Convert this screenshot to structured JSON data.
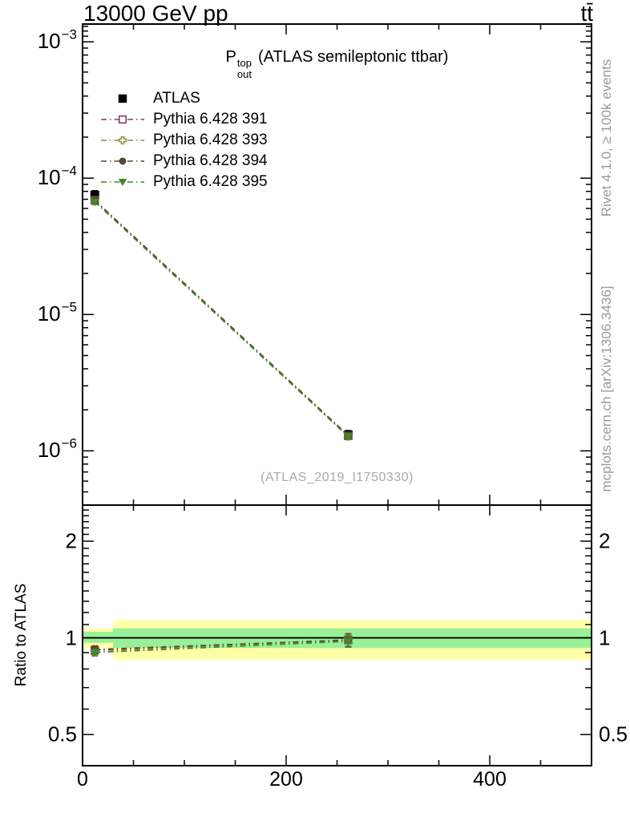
{
  "header": {
    "beam": "13000 GeV pp",
    "process": "tt̄"
  },
  "main_plot": {
    "title": {
      "symbol": "P",
      "sup": "top",
      "sub": "out",
      "rest": "(ATLAS semileptonic ttbar)"
    },
    "watermark": "(ATLAS_2019_I1750330)",
    "y_tick_labels": [
      {
        "base": "10",
        "exp": "−3",
        "value": 0.001
      },
      {
        "base": "10",
        "exp": "−4",
        "value": 0.0001
      },
      {
        "base": "10",
        "exp": "−5",
        "value": 1e-05
      },
      {
        "base": "10",
        "exp": "−6",
        "value": 1e-06
      }
    ],
    "x_tick_labels": [
      {
        "label": "0",
        "value": 0
      },
      {
        "label": "200",
        "value": 200
      },
      {
        "label": "400",
        "value": 400
      }
    ]
  },
  "ratio_plot": {
    "ylabel": "Ratio to ATLAS",
    "y_tick_labels": [
      {
        "label": "2",
        "value": 2
      },
      {
        "label": "1",
        "value": 1
      },
      {
        "label": "0.5",
        "value": 0.5
      }
    ]
  },
  "side_notes": {
    "top": "Rivet 4.1.0, ≥ 100k events",
    "bottom": "mcplots.cern.ch [arXiv:1306.3436]"
  },
  "colors": {
    "frame": "#000000",
    "atlas": "#000000",
    "pythia_391": "#7b4360",
    "pythia_393": "#8f8f3d",
    "pythia_394": "#5c4633",
    "pythia_395": "#418a28",
    "band_yellow": "#ffffa6",
    "band_green": "#98f098",
    "gray_text": "#999999",
    "watermark_text": "#aaaaaa"
  },
  "chart_data": [
    {
      "type": "scatter",
      "title": "P_out^top (ATLAS semileptonic ttbar)",
      "xlabel": "",
      "ylabel": "",
      "xlim": [
        0,
        500
      ],
      "ylog": true,
      "ylim": [
        4e-07,
        0.00135
      ],
      "x_major_ticks": [
        0,
        200,
        400
      ],
      "x_minor_step": 50,
      "y_major_ticks": [
        1e-06,
        1e-05,
        0.0001,
        0.001
      ],
      "grid": false,
      "legend_position": "top-left-inside",
      "series": [
        {
          "name": "ATLAS",
          "marker": "square-filled",
          "color": "#000000",
          "line": "none",
          "x": [
            12,
            261
          ],
          "y": [
            7.5e-05,
            1.31e-06
          ],
          "yerr": [
            6e-06,
            1e-07
          ]
        },
        {
          "name": "Pythia 6.428 391",
          "marker": "square-open",
          "color": "#7b4360",
          "line": "dash-dot",
          "x": [
            12,
            261
          ],
          "y": [
            6.9e-05,
            1.29e-06
          ],
          "yerr": [
            3e-06,
            6e-08
          ]
        },
        {
          "name": "Pythia 6.428 393",
          "marker": "cross-open",
          "color": "#8f8f3d",
          "line": "dash-dot",
          "x": [
            12,
            261
          ],
          "y": [
            6.8e-05,
            1.28e-06
          ],
          "yerr": [
            3e-06,
            6e-08
          ]
        },
        {
          "name": "Pythia 6.428 394",
          "marker": "circle-filled",
          "color": "#5c4633",
          "line": "dash-dot",
          "x": [
            12,
            261
          ],
          "y": [
            6.9e-05,
            1.3e-06
          ],
          "yerr": [
            3e-06,
            6e-08
          ]
        },
        {
          "name": "Pythia 6.428 395",
          "marker": "triangle-down-filled",
          "color": "#418a28",
          "line": "dash-dot",
          "x": [
            12,
            261
          ],
          "y": [
            6.7e-05,
            1.27e-06
          ],
          "yerr": [
            3e-06,
            6e-08
          ]
        }
      ]
    },
    {
      "type": "ratio",
      "ylabel": "Ratio to ATLAS",
      "xlim": [
        0,
        500
      ],
      "ylog": true,
      "ylim": [
        0.4,
        2.59
      ],
      "y_major_ticks": [
        0.5,
        1,
        2
      ],
      "reference_line": 1,
      "bands": [
        {
          "x0": 0,
          "x1": 30,
          "yellow": [
            0.93,
            1.07
          ],
          "green": [
            0.965,
            1.045
          ]
        },
        {
          "x0": 30,
          "x1": 500,
          "yellow": [
            0.855,
            1.135
          ],
          "green": [
            0.93,
            1.07
          ]
        }
      ],
      "series": [
        {
          "name": "Pythia 6.428 391",
          "marker": "square-open",
          "color": "#7b4360",
          "line": "dash-dot",
          "x": [
            12,
            261
          ],
          "y": [
            0.915,
            0.985
          ],
          "yerr": [
            0.025,
            0.045
          ]
        },
        {
          "name": "Pythia 6.428 393",
          "marker": "cross-open",
          "color": "#8f8f3d",
          "line": "dash-dot",
          "x": [
            12,
            261
          ],
          "y": [
            0.905,
            0.98
          ],
          "yerr": [
            0.022,
            0.04
          ]
        },
        {
          "name": "Pythia 6.428 394",
          "marker": "circle-filled",
          "color": "#5c4633",
          "line": "dash-dot",
          "x": [
            12,
            261
          ],
          "y": [
            0.92,
            0.985
          ],
          "yerr": [
            0.025,
            0.045
          ]
        },
        {
          "name": "Pythia 6.428 395",
          "marker": "triangle-down-filled",
          "color": "#418a28",
          "line": "dash-dot",
          "x": [
            12,
            261
          ],
          "y": [
            0.9,
            0.975
          ],
          "yerr": [
            0.022,
            0.04
          ]
        }
      ]
    }
  ]
}
